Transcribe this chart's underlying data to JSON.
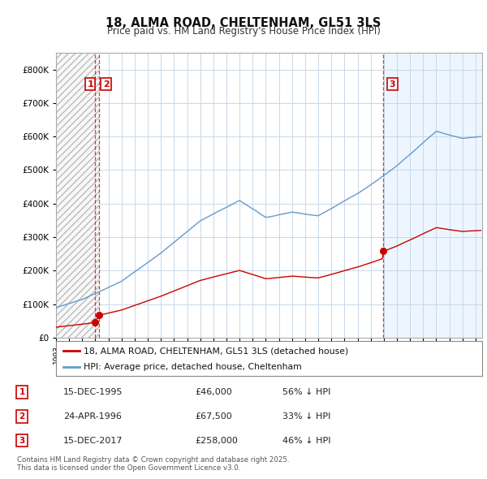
{
  "title": "18, ALMA ROAD, CHELTENHAM, GL51 3LS",
  "subtitle": "Price paid vs. HM Land Registry's House Price Index (HPI)",
  "legend_label_red": "18, ALMA ROAD, CHELTENHAM, GL51 3LS (detached house)",
  "legend_label_blue": "HPI: Average price, detached house, Cheltenham",
  "table": [
    {
      "num": "1",
      "date": "15-DEC-1995",
      "price": "£46,000",
      "hpi": "56% ↓ HPI"
    },
    {
      "num": "2",
      "date": "24-APR-1996",
      "price": "£67,500",
      "hpi": "33% ↓ HPI"
    },
    {
      "num": "3",
      "date": "15-DEC-2017",
      "price": "£258,000",
      "hpi": "46% ↓ HPI"
    }
  ],
  "footer": "Contains HM Land Registry data © Crown copyright and database right 2025.\nThis data is licensed under the Open Government Licence v3.0.",
  "background_color": "#ffffff",
  "plot_bg_color": "#ffffff",
  "grid_color": "#c8d8e8",
  "red_color": "#cc0000",
  "blue_color": "#6699cc",
  "blue_fill_color": "#ddeeff",
  "hatch_bg_color": "#f8f8f8",
  "ylim": [
    0,
    850000
  ],
  "yticks": [
    0,
    100000,
    200000,
    300000,
    400000,
    500000,
    600000,
    700000,
    800000
  ],
  "sale1_x": 1995.96,
  "sale1_y": 46000,
  "sale2_x": 1996.31,
  "sale2_y": 67500,
  "sale3_x": 2017.96,
  "sale3_y": 258000,
  "xmin": 1993.0,
  "xmax": 2025.5,
  "n_months": 390
}
